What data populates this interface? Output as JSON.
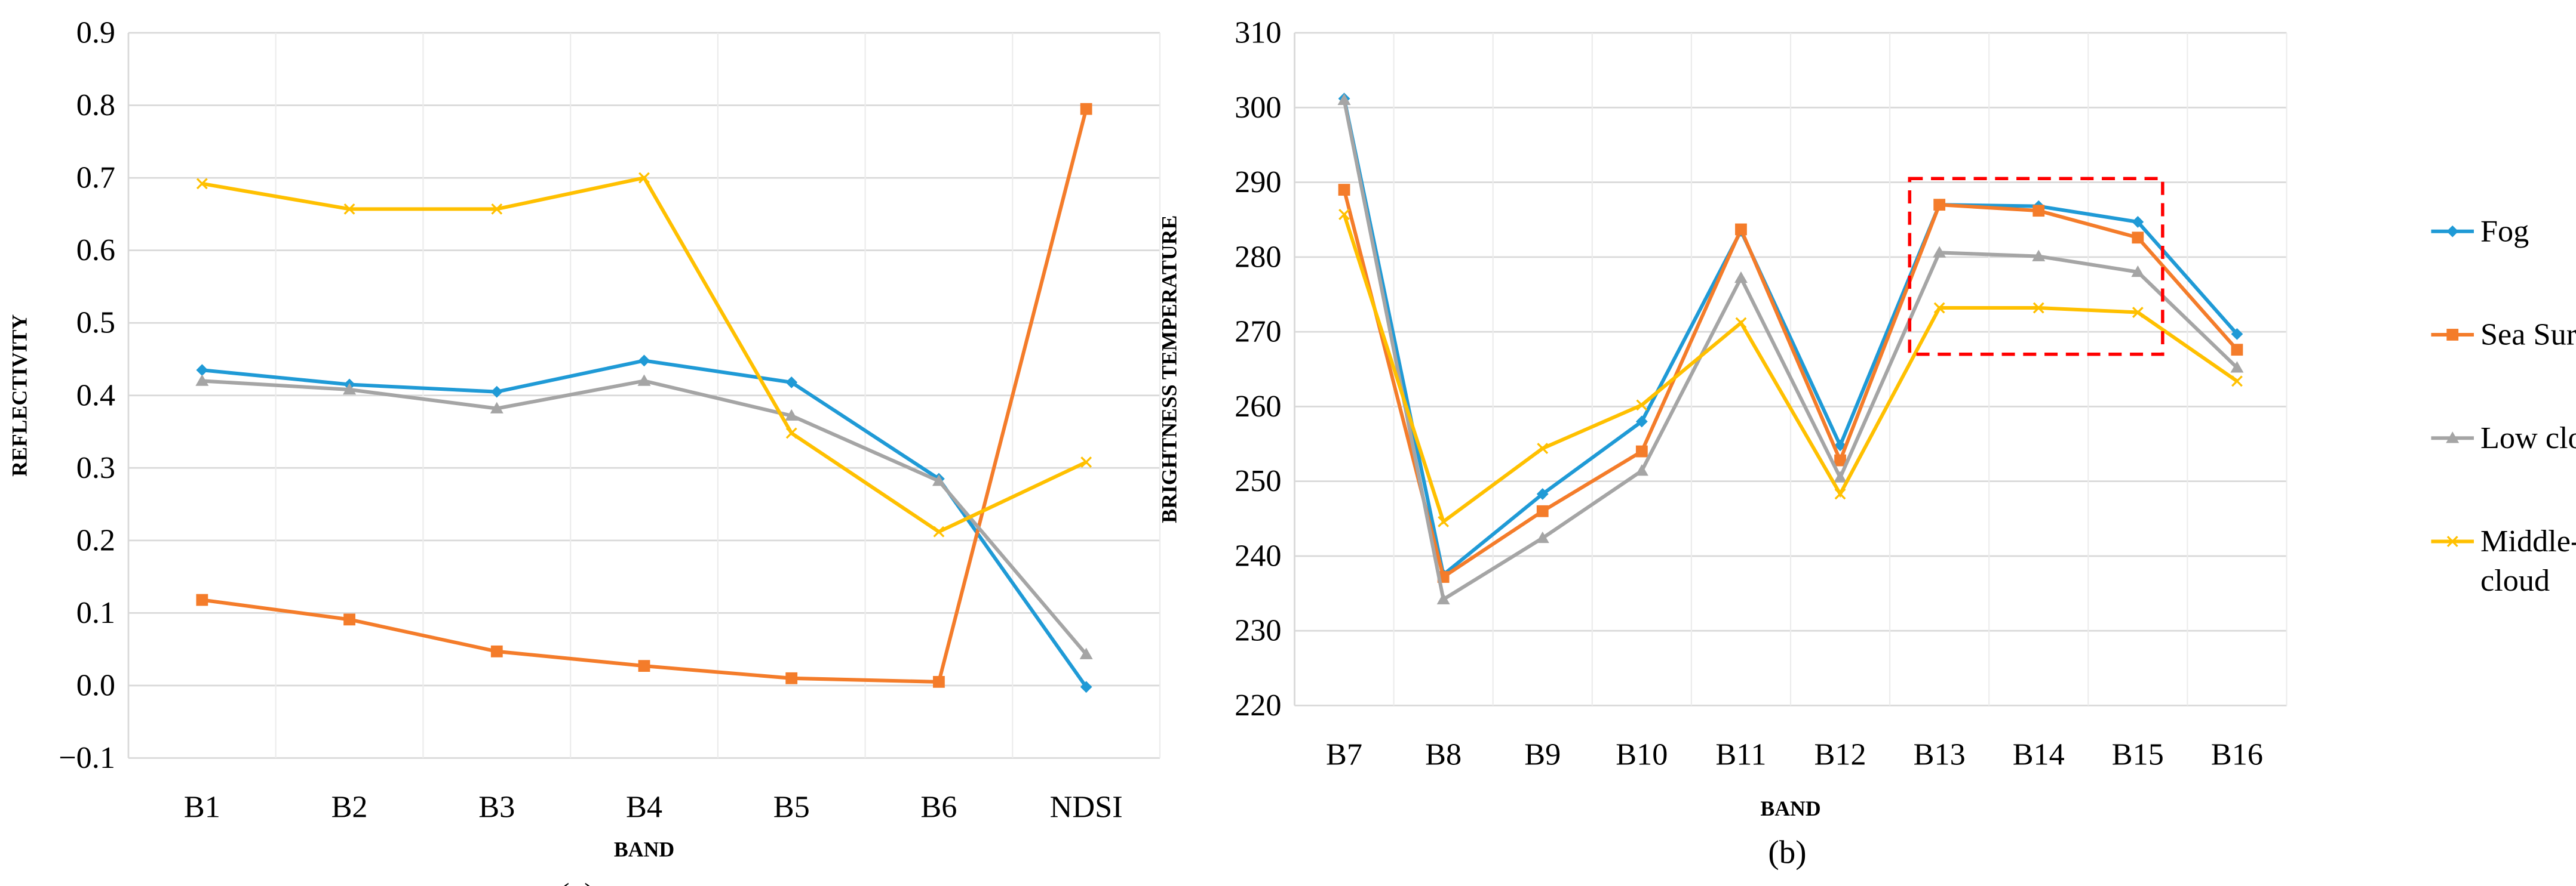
{
  "colors": {
    "Fog": "#1f9ad6",
    "Sea Surface": "#f47c2a",
    "Low cloud": "#a5a5a5",
    "Middle-high cloud": "#ffc000",
    "highlight_box": "#ff0000",
    "grid": "#d9d9d9"
  },
  "legend": {
    "placement": "right of chart (b)",
    "entries": [
      "Fog",
      "Sea Surface",
      "Low cloud",
      "Middle-high cloud"
    ],
    "line1": [
      "Fog",
      "Sea Surface",
      "Low cloud",
      "Middle-high"
    ],
    "line2": [
      "",
      "",
      "",
      "cloud"
    ]
  },
  "chart_data": [
    {
      "type": "line",
      "panel_label": "(a)",
      "xlabel": "BAND",
      "ylabel": "REFLECTIVITY",
      "ylim": [
        -0.1,
        0.9
      ],
      "yticks": [
        "−0.1",
        "0.0",
        "0.1",
        "0.2",
        "0.3",
        "0.4",
        "0.5",
        "0.6",
        "0.7",
        "0.8",
        "0.9"
      ],
      "grid": true,
      "categories": [
        "B1",
        "B2",
        "B3",
        "B4",
        "B5",
        "B6",
        "NDSI"
      ],
      "series": [
        {
          "name": "Fog",
          "marker": "diamond",
          "values": [
            0.435,
            0.415,
            0.405,
            0.448,
            0.418,
            0.285,
            -0.002
          ]
        },
        {
          "name": "Sea Surface",
          "marker": "square",
          "values": [
            0.118,
            0.091,
            0.047,
            0.027,
            0.01,
            0.005,
            0.795
          ]
        },
        {
          "name": "Low cloud",
          "marker": "triangle",
          "values": [
            0.42,
            0.408,
            0.382,
            0.42,
            0.372,
            0.282,
            0.043
          ]
        },
        {
          "name": "Middle-high cloud",
          "marker": "x",
          "values": [
            0.692,
            0.657,
            0.657,
            0.7,
            0.348,
            0.212,
            0.308
          ]
        }
      ]
    },
    {
      "type": "line",
      "panel_label": "(b)",
      "xlabel": "BAND",
      "ylabel": "BRIGHTNESS  TEMPERATURE",
      "ylim": [
        220,
        310
      ],
      "yticks": [
        "220",
        "230",
        "240",
        "250",
        "260",
        "270",
        "280",
        "290",
        "300",
        "310"
      ],
      "grid": true,
      "categories": [
        "B7",
        "B8",
        "B9",
        "B10",
        "B11",
        "B12",
        "B13",
        "B14",
        "B15",
        "B16"
      ],
      "series": [
        {
          "name": "Fog",
          "marker": "diamond",
          "values": [
            301.2,
            237.5,
            248.3,
            258.0,
            283.5,
            254.8,
            287.0,
            286.8,
            284.7,
            269.7
          ]
        },
        {
          "name": "Sea Surface",
          "marker": "square",
          "values": [
            289.0,
            237.2,
            246.0,
            254.0,
            283.7,
            252.8,
            287.0,
            286.2,
            282.6,
            267.6
          ]
        },
        {
          "name": "Low cloud",
          "marker": "triangle",
          "values": [
            301.0,
            234.2,
            242.4,
            251.4,
            277.2,
            250.5,
            280.6,
            280.1,
            278.0,
            265.2
          ]
        },
        {
          "name": "Middle-high cloud",
          "marker": "x",
          "values": [
            285.7,
            244.6,
            254.4,
            260.2,
            271.2,
            248.3,
            273.2,
            273.2,
            272.6,
            263.4
          ]
        }
      ],
      "annotation": {
        "type": "dashed-box",
        "categories": [
          "B13",
          "B15"
        ],
        "yrange": [
          267,
          290.5
        ]
      }
    }
  ]
}
